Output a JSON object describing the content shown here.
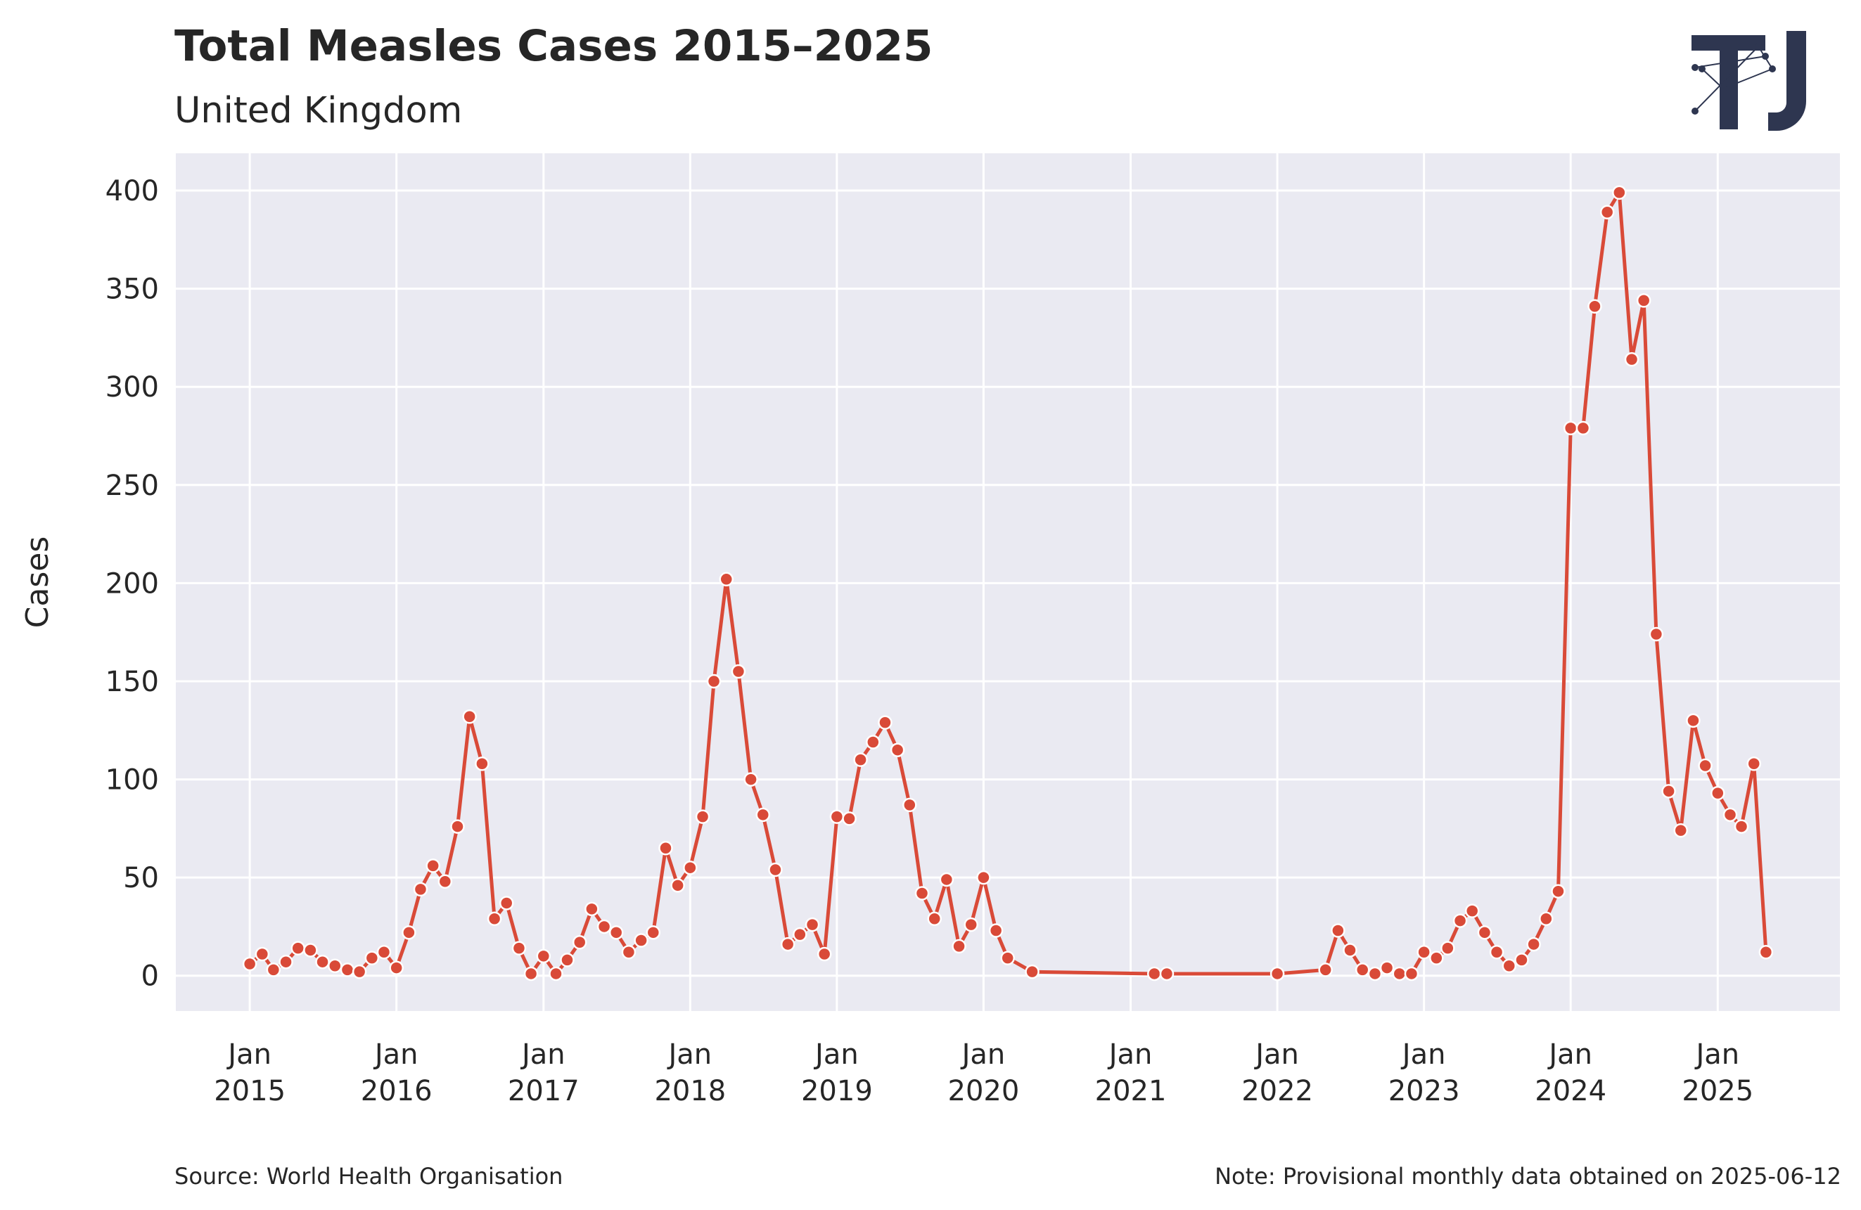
{
  "header": {
    "title": "Total Measles Cases 2015–2025",
    "subtitle": "United Kingdom"
  },
  "footer": {
    "source": "Source: World Health Organisation",
    "note": "Note: Provisional monthly data obtained on 2025-06-12"
  },
  "colors": {
    "plot_background": "#eaeaf2",
    "grid": "#ffffff",
    "series": "#d94a38",
    "logo": "#2e3650"
  },
  "logo": {
    "icon": "tj-logo-icon"
  },
  "chart_data": {
    "type": "line",
    "title": "Total Measles Cases 2015–2025",
    "subtitle": "United Kingdom",
    "xlabel": "",
    "ylabel": "Cases",
    "ylim": [
      -18,
      419
    ],
    "xlim": [
      "2014-07-01",
      "2025-11-01"
    ],
    "yticks": [
      0,
      50,
      100,
      150,
      200,
      250,
      300,
      350,
      400
    ],
    "xticks": [
      {
        "date": "2015-01-01",
        "label": [
          "Jan",
          "2015"
        ]
      },
      {
        "date": "2016-01-01",
        "label": [
          "Jan",
          "2016"
        ]
      },
      {
        "date": "2017-01-01",
        "label": [
          "Jan",
          "2017"
        ]
      },
      {
        "date": "2018-01-01",
        "label": [
          "Jan",
          "2018"
        ]
      },
      {
        "date": "2019-01-01",
        "label": [
          "Jan",
          "2019"
        ]
      },
      {
        "date": "2020-01-01",
        "label": [
          "Jan",
          "2020"
        ]
      },
      {
        "date": "2021-01-01",
        "label": [
          "Jan",
          "2021"
        ]
      },
      {
        "date": "2022-01-01",
        "label": [
          "Jan",
          "2022"
        ]
      },
      {
        "date": "2023-01-01",
        "label": [
          "Jan",
          "2023"
        ]
      },
      {
        "date": "2024-01-01",
        "label": [
          "Jan",
          "2024"
        ]
      },
      {
        "date": "2025-01-01",
        "label": [
          "Jan",
          "2025"
        ]
      }
    ],
    "grid": true,
    "legend": "none",
    "series": [
      {
        "color": "#d94a38",
        "points": [
          [
            "2015-01",
            6
          ],
          [
            "2015-02",
            11
          ],
          [
            "2015-03",
            3
          ],
          [
            "2015-04",
            7
          ],
          [
            "2015-05",
            14
          ],
          [
            "2015-06",
            13
          ],
          [
            "2015-07",
            7
          ],
          [
            "2015-08",
            5
          ],
          [
            "2015-09",
            3
          ],
          [
            "2015-10",
            2
          ],
          [
            "2015-11",
            9
          ],
          [
            "2015-12",
            12
          ],
          [
            "2016-01",
            4
          ],
          [
            "2016-02",
            22
          ],
          [
            "2016-03",
            44
          ],
          [
            "2016-04",
            56
          ],
          [
            "2016-05",
            48
          ],
          [
            "2016-06",
            76
          ],
          [
            "2016-07",
            132
          ],
          [
            "2016-08",
            108
          ],
          [
            "2016-09",
            29
          ],
          [
            "2016-10",
            37
          ],
          [
            "2016-11",
            14
          ],
          [
            "2016-12",
            1
          ],
          [
            "2017-01",
            10
          ],
          [
            "2017-02",
            1
          ],
          [
            "2017-03",
            8
          ],
          [
            "2017-04",
            17
          ],
          [
            "2017-05",
            34
          ],
          [
            "2017-06",
            25
          ],
          [
            "2017-07",
            22
          ],
          [
            "2017-08",
            12
          ],
          [
            "2017-09",
            18
          ],
          [
            "2017-10",
            22
          ],
          [
            "2017-11",
            65
          ],
          [
            "2017-12",
            46
          ],
          [
            "2018-01",
            55
          ],
          [
            "2018-02",
            81
          ],
          [
            "2018-03",
            150
          ],
          [
            "2018-04",
            202
          ],
          [
            "2018-05",
            155
          ],
          [
            "2018-06",
            100
          ],
          [
            "2018-07",
            82
          ],
          [
            "2018-08",
            54
          ],
          [
            "2018-09",
            16
          ],
          [
            "2018-10",
            21
          ],
          [
            "2018-11",
            26
          ],
          [
            "2018-12",
            11
          ],
          [
            "2019-01",
            81
          ],
          [
            "2019-02",
            80
          ],
          [
            "2019-03",
            110
          ],
          [
            "2019-04",
            119
          ],
          [
            "2019-05",
            129
          ],
          [
            "2019-06",
            115
          ],
          [
            "2019-07",
            87
          ],
          [
            "2019-08",
            42
          ],
          [
            "2019-09",
            29
          ],
          [
            "2019-10",
            49
          ],
          [
            "2019-11",
            15
          ],
          [
            "2019-12",
            26
          ],
          [
            "2020-01",
            50
          ],
          [
            "2020-02",
            23
          ],
          [
            "2020-03",
            9
          ],
          [
            "2020-05",
            2
          ],
          [
            "2021-03",
            1
          ],
          [
            "2021-04",
            1
          ],
          [
            "2022-01",
            1
          ],
          [
            "2022-05",
            3
          ],
          [
            "2022-06",
            23
          ],
          [
            "2022-07",
            13
          ],
          [
            "2022-08",
            3
          ],
          [
            "2022-09",
            1
          ],
          [
            "2022-10",
            4
          ],
          [
            "2022-11",
            1
          ],
          [
            "2022-12",
            1
          ],
          [
            "2023-01",
            12
          ],
          [
            "2023-02",
            9
          ],
          [
            "2023-03",
            14
          ],
          [
            "2023-04",
            28
          ],
          [
            "2023-05",
            33
          ],
          [
            "2023-06",
            22
          ],
          [
            "2023-07",
            12
          ],
          [
            "2023-08",
            5
          ],
          [
            "2023-09",
            8
          ],
          [
            "2023-10",
            16
          ],
          [
            "2023-11",
            29
          ],
          [
            "2023-12",
            43
          ],
          [
            "2024-01",
            279
          ],
          [
            "2024-02",
            279
          ],
          [
            "2024-03",
            341
          ],
          [
            "2024-04",
            389
          ],
          [
            "2024-05",
            399
          ],
          [
            "2024-06",
            314
          ],
          [
            "2024-07",
            344
          ],
          [
            "2024-08",
            174
          ],
          [
            "2024-09",
            94
          ],
          [
            "2024-10",
            74
          ],
          [
            "2024-11",
            130
          ],
          [
            "2024-12",
            107
          ],
          [
            "2025-01",
            93
          ],
          [
            "2025-02",
            82
          ],
          [
            "2025-03",
            76
          ],
          [
            "2025-04",
            108
          ],
          [
            "2025-05",
            12
          ]
        ]
      }
    ]
  }
}
